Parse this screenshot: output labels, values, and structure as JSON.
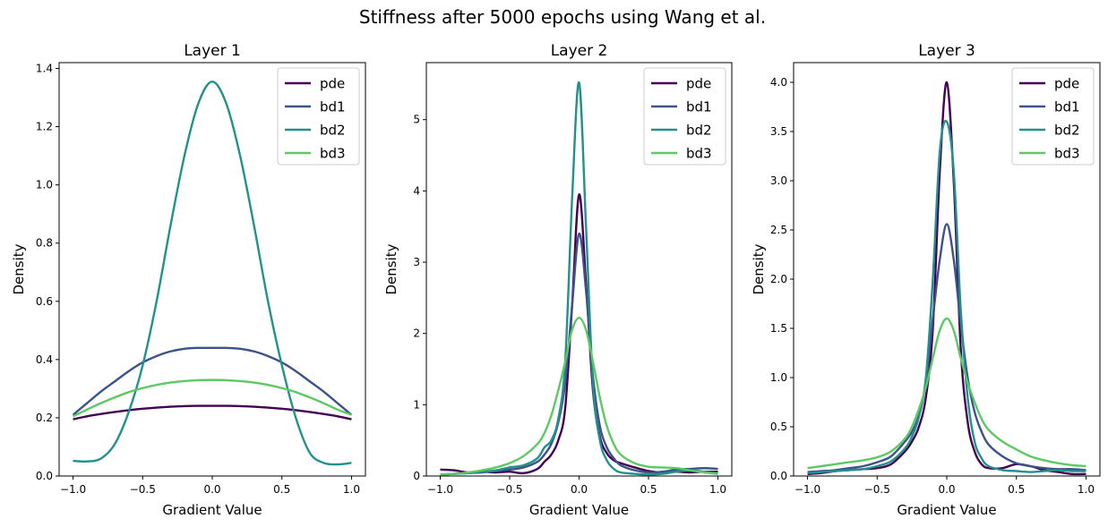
{
  "figure_title": "Stiffness after 5000 epochs using Wang et al.",
  "colors": {
    "pde": "#440154",
    "bd1": "#3b528b",
    "bd2": "#21918c",
    "bd3": "#5ec962"
  },
  "chart_data": [
    {
      "type": "line",
      "title": "Layer 1",
      "xlabel": "Gradient Value",
      "ylabel": "Density",
      "xlim": [
        -1.1,
        1.1
      ],
      "ylim": [
        0,
        1.42
      ],
      "xticks": [
        -1.0,
        -0.5,
        0.0,
        0.5,
        1.0
      ],
      "xtick_labels": [
        "−1.0",
        "−0.5",
        "0.0",
        "0.5",
        "1.0"
      ],
      "yticks": [
        0.0,
        0.2,
        0.4,
        0.6,
        0.8,
        1.0,
        1.2,
        1.4
      ],
      "ytick_labels": [
        "0.0",
        "0.2",
        "0.4",
        "0.6",
        "0.8",
        "1.0",
        "1.2",
        "1.4"
      ],
      "legend": "top-right",
      "x": [
        -1.0,
        -0.9,
        -0.8,
        -0.7,
        -0.6,
        -0.5,
        -0.4,
        -0.3,
        -0.2,
        -0.1,
        0.0,
        0.1,
        0.2,
        0.3,
        0.4,
        0.5,
        0.6,
        0.7,
        0.8,
        0.9,
        1.0
      ],
      "series": [
        {
          "name": "pde",
          "values": [
            0.195,
            0.205,
            0.213,
            0.22,
            0.226,
            0.231,
            0.235,
            0.238,
            0.24,
            0.241,
            0.241,
            0.241,
            0.24,
            0.238,
            0.235,
            0.231,
            0.226,
            0.22,
            0.213,
            0.205,
            0.195
          ]
        },
        {
          "name": "bd1",
          "values": [
            0.21,
            0.25,
            0.29,
            0.325,
            0.36,
            0.39,
            0.412,
            0.428,
            0.437,
            0.44,
            0.44,
            0.44,
            0.437,
            0.428,
            0.412,
            0.39,
            0.36,
            0.325,
            0.29,
            0.25,
            0.21
          ]
        },
        {
          "name": "bd2",
          "values": [
            0.052,
            0.05,
            0.06,
            0.11,
            0.22,
            0.38,
            0.6,
            0.86,
            1.1,
            1.28,
            1.355,
            1.28,
            1.1,
            0.86,
            0.6,
            0.38,
            0.2,
            0.08,
            0.045,
            0.04,
            0.045
          ]
        },
        {
          "name": "bd3",
          "values": [
            0.205,
            0.228,
            0.25,
            0.27,
            0.288,
            0.302,
            0.313,
            0.321,
            0.326,
            0.329,
            0.33,
            0.329,
            0.326,
            0.321,
            0.313,
            0.302,
            0.288,
            0.27,
            0.25,
            0.228,
            0.21
          ]
        }
      ]
    },
    {
      "type": "line",
      "title": "Layer 2",
      "xlabel": "Gradient Value",
      "ylabel": "Density",
      "xlim": [
        -1.1,
        1.1
      ],
      "ylim": [
        0,
        5.8
      ],
      "xticks": [
        -1.0,
        -0.5,
        0.0,
        0.5,
        1.0
      ],
      "xtick_labels": [
        "−1.0",
        "−0.5",
        "0.0",
        "0.5",
        "1.0"
      ],
      "yticks": [
        0,
        1,
        2,
        3,
        4,
        5
      ],
      "ytick_labels": [
        "0",
        "1",
        "2",
        "3",
        "4",
        "5"
      ],
      "legend": "top-right",
      "x": [
        -1.0,
        -0.9,
        -0.8,
        -0.7,
        -0.6,
        -0.5,
        -0.4,
        -0.3,
        -0.25,
        -0.2,
        -0.15,
        -0.1,
        -0.05,
        0.0,
        0.05,
        0.1,
        0.15,
        0.2,
        0.25,
        0.3,
        0.4,
        0.5,
        0.6,
        0.7,
        0.8,
        0.9,
        1.0
      ],
      "series": [
        {
          "name": "pde",
          "values": [
            0.09,
            0.08,
            0.05,
            0.06,
            0.05,
            0.06,
            0.04,
            0.1,
            0.2,
            0.3,
            0.5,
            0.95,
            2.4,
            3.95,
            2.7,
            1.2,
            0.55,
            0.32,
            0.22,
            0.18,
            0.12,
            0.07,
            0.05,
            0.06,
            0.05,
            0.06,
            0.06
          ]
        },
        {
          "name": "bd1",
          "values": [
            0.02,
            0.03,
            0.04,
            0.05,
            0.07,
            0.09,
            0.12,
            0.2,
            0.3,
            0.45,
            0.75,
            1.3,
            2.4,
            3.4,
            2.6,
            1.4,
            0.7,
            0.4,
            0.25,
            0.15,
            0.08,
            0.05,
            0.06,
            0.09,
            0.1,
            0.11,
            0.1
          ]
        },
        {
          "name": "bd2",
          "values": [
            0.02,
            0.03,
            0.04,
            0.06,
            0.08,
            0.12,
            0.15,
            0.25,
            0.4,
            0.5,
            0.8,
            1.6,
            3.9,
            5.52,
            3.5,
            1.3,
            0.5,
            0.22,
            0.1,
            0.05,
            0.03,
            0.02,
            0.03,
            0.06,
            0.08,
            0.06,
            0.04
          ]
        },
        {
          "name": "bd3",
          "values": [
            0.02,
            0.03,
            0.05,
            0.08,
            0.12,
            0.18,
            0.28,
            0.45,
            0.6,
            0.85,
            1.2,
            1.6,
            2.05,
            2.22,
            2.05,
            1.6,
            1.1,
            0.7,
            0.45,
            0.3,
            0.18,
            0.13,
            0.12,
            0.11,
            0.08,
            0.05,
            0.03
          ]
        }
      ]
    },
    {
      "type": "line",
      "title": "Layer 3",
      "xlabel": "Gradient Value",
      "ylabel": "Density",
      "xlim": [
        -1.1,
        1.1
      ],
      "ylim": [
        0,
        4.2
      ],
      "xticks": [
        -1.0,
        -0.5,
        0.0,
        0.5,
        1.0
      ],
      "xtick_labels": [
        "−1.0",
        "−0.5",
        "0.0",
        "0.5",
        "1.0"
      ],
      "yticks": [
        0.0,
        0.5,
        1.0,
        1.5,
        2.0,
        2.5,
        3.0,
        3.5,
        4.0
      ],
      "ytick_labels": [
        "0.0",
        "0.5",
        "1.0",
        "1.5",
        "2.0",
        "2.5",
        "3.0",
        "3.5",
        "4.0"
      ],
      "legend": "top-right",
      "x": [
        -1.0,
        -0.9,
        -0.8,
        -0.7,
        -0.6,
        -0.5,
        -0.4,
        -0.3,
        -0.25,
        -0.2,
        -0.15,
        -0.1,
        -0.05,
        0.0,
        0.05,
        0.1,
        0.15,
        0.2,
        0.25,
        0.3,
        0.4,
        0.5,
        0.6,
        0.7,
        0.8,
        0.9,
        1.0
      ],
      "series": [
        {
          "name": "pde",
          "values": [
            0.02,
            0.03,
            0.05,
            0.06,
            0.07,
            0.08,
            0.12,
            0.25,
            0.35,
            0.5,
            0.8,
            1.5,
            3.1,
            4.0,
            3.0,
            1.3,
            0.55,
            0.25,
            0.12,
            0.08,
            0.08,
            0.12,
            0.1,
            0.06,
            0.04,
            0.02,
            0.02
          ]
        },
        {
          "name": "bd1",
          "values": [
            0.04,
            0.05,
            0.06,
            0.08,
            0.1,
            0.14,
            0.2,
            0.35,
            0.45,
            0.62,
            0.95,
            1.6,
            2.2,
            2.56,
            2.2,
            1.55,
            1.0,
            0.65,
            0.45,
            0.32,
            0.2,
            0.13,
            0.1,
            0.08,
            0.07,
            0.07,
            0.06
          ]
        },
        {
          "name": "bd2",
          "values": [
            0.03,
            0.04,
            0.05,
            0.06,
            0.07,
            0.1,
            0.15,
            0.28,
            0.4,
            0.6,
            1.0,
            2.0,
            3.3,
            3.6,
            3.1,
            1.7,
            0.8,
            0.35,
            0.18,
            0.1,
            0.06,
            0.05,
            0.04,
            0.05,
            0.06,
            0.05,
            0.05
          ]
        },
        {
          "name": "bd3",
          "values": [
            0.08,
            0.1,
            0.12,
            0.14,
            0.16,
            0.19,
            0.25,
            0.38,
            0.5,
            0.68,
            0.9,
            1.2,
            1.48,
            1.6,
            1.48,
            1.2,
            0.95,
            0.75,
            0.58,
            0.47,
            0.35,
            0.27,
            0.2,
            0.16,
            0.13,
            0.11,
            0.1
          ]
        }
      ]
    }
  ]
}
